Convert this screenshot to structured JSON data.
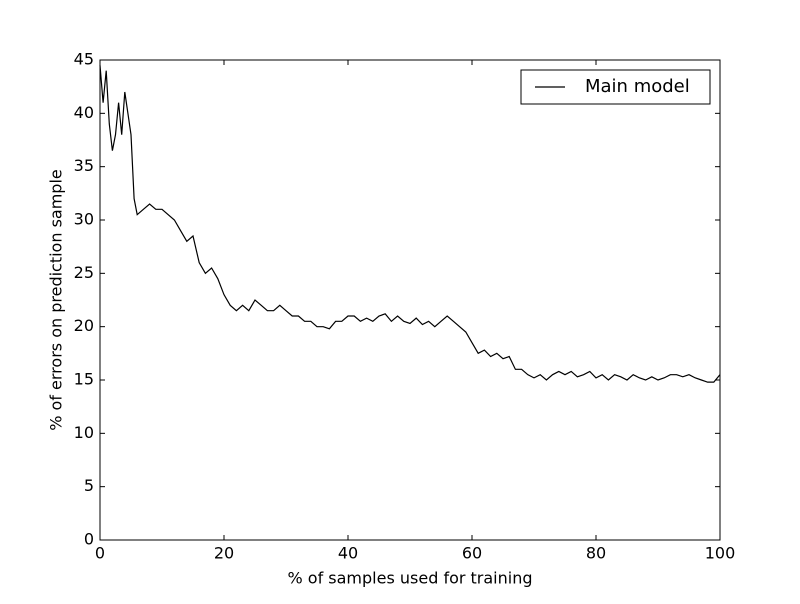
{
  "chart_data": {
    "type": "line",
    "xlabel": "% of samples used for training",
    "ylabel": "% of errors on prediction sample",
    "x": [
      0,
      0.5,
      1,
      1.5,
      2,
      2.5,
      3,
      3.5,
      4,
      4.5,
      5,
      5.5,
      6,
      7,
      8,
      9,
      10,
      11,
      12,
      13,
      14,
      15,
      16,
      17,
      18,
      19,
      20,
      21,
      22,
      23,
      24,
      25,
      26,
      27,
      28,
      29,
      30,
      31,
      32,
      33,
      34,
      35,
      36,
      37,
      38,
      39,
      40,
      41,
      42,
      43,
      44,
      45,
      46,
      47,
      48,
      49,
      50,
      51,
      52,
      53,
      54,
      55,
      56,
      57,
      58,
      59,
      60,
      61,
      62,
      63,
      64,
      65,
      66,
      67,
      68,
      69,
      70,
      71,
      72,
      73,
      74,
      75,
      76,
      77,
      78,
      79,
      80,
      81,
      82,
      83,
      84,
      85,
      86,
      87,
      88,
      89,
      90,
      91,
      92,
      93,
      94,
      95,
      96,
      97,
      98,
      99,
      100
    ],
    "series": [
      {
        "name": "Main model",
        "color": "#000000",
        "values": [
          44.5,
          41,
          44,
          39,
          36.5,
          38,
          41,
          38,
          42,
          40,
          38,
          32,
          30.5,
          31,
          31.5,
          31,
          31,
          30.5,
          30,
          29,
          28,
          28.5,
          26,
          25,
          25.5,
          24.5,
          23,
          22,
          21.5,
          22,
          21.5,
          22.5,
          22,
          21.5,
          21.5,
          22,
          21.5,
          21,
          21,
          20.5,
          20.5,
          20,
          20,
          19.8,
          20.5,
          20.5,
          21,
          21,
          20.5,
          20.8,
          20.5,
          21,
          21.2,
          20.5,
          21,
          20.5,
          20.3,
          20.8,
          20.2,
          20.5,
          20,
          20.5,
          21,
          20.5,
          20,
          19.5,
          18.5,
          17.5,
          17.8,
          17.2,
          17.5,
          17,
          17.2,
          16,
          16,
          15.5,
          15.2,
          15.5,
          15,
          15.5,
          15.8,
          15.5,
          15.8,
          15.3,
          15.5,
          15.8,
          15.2,
          15.5,
          15,
          15.5,
          15.3,
          15,
          15.5,
          15.2,
          15,
          15.3,
          15,
          15.2,
          15.5,
          15.5,
          15.3,
          15.5,
          15.2,
          15,
          14.8,
          14.8,
          15.5
        ]
      }
    ],
    "xlim": [
      0,
      100
    ],
    "xticks": [
      0,
      20,
      40,
      60,
      80,
      100
    ],
    "ylim": [
      0,
      45
    ],
    "yticks": [
      0,
      5,
      10,
      15,
      20,
      25,
      30,
      35,
      40,
      45
    ],
    "legend": "upper right",
    "grid": false
  }
}
